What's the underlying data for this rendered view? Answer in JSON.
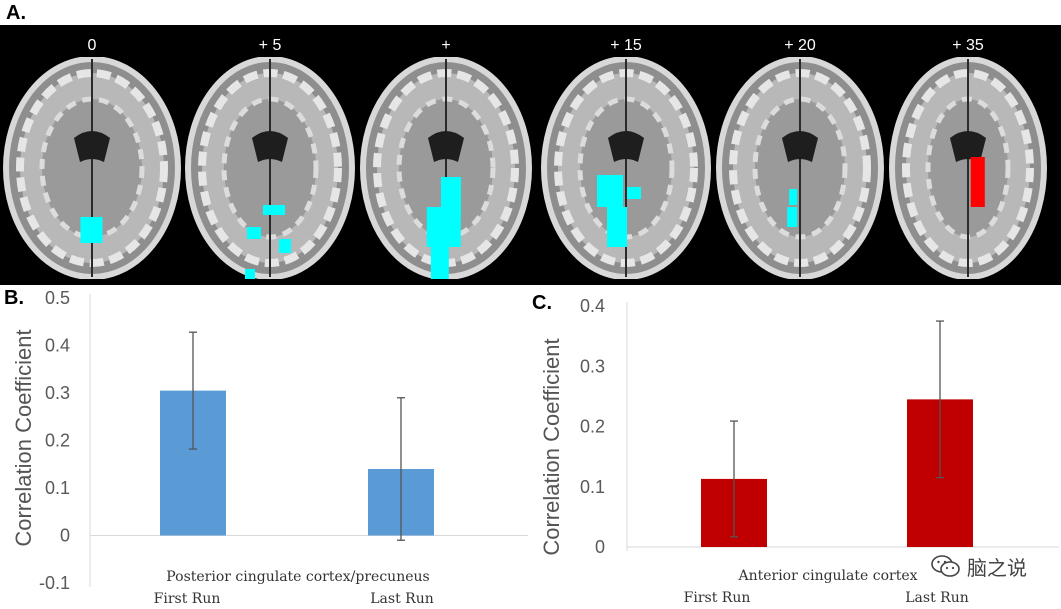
{
  "panel_a": {
    "letter": "A.",
    "slices": [
      {
        "label": "0",
        "color": "#00ffff"
      },
      {
        "label": "+ 5",
        "color": "#00ffff"
      },
      {
        "label": "+",
        "color": "#00ffff"
      },
      {
        "label": "+ 15",
        "color": "#00ffff"
      },
      {
        "label": "+ 20",
        "color": "#00ffff"
      },
      {
        "label": "+ 35",
        "color": "#ff0000"
      }
    ]
  },
  "chart_data": [
    {
      "panel": "B.",
      "type": "bar",
      "ylabel": "Correlation Coefficient",
      "xtitle": "Posterior cingulate cortex/precuneus",
      "categories": [
        "First Run",
        "Last Run"
      ],
      "values": [
        0.305,
        0.14
      ],
      "errors": [
        0.123,
        0.15
      ],
      "yticks": [
        "0.5",
        "0.4",
        "0.3",
        "0.2",
        "0.1",
        "0",
        "-0.1"
      ],
      "ylim": [
        -0.1,
        0.5
      ],
      "color": "#5b9bd5"
    },
    {
      "panel": "C.",
      "type": "bar",
      "ylabel": "Correlation Coefficient",
      "xtitle": "Anterior cingulate cortex",
      "categories": [
        "First Run",
        "Last Run"
      ],
      "values": [
        0.113,
        0.245
      ],
      "errors": [
        0.096,
        0.13
      ],
      "yticks": [
        "0.4",
        "0.3",
        "0.2",
        "0.1",
        "0"
      ],
      "ylim": [
        0,
        0.4
      ],
      "color": "#c00000"
    }
  ],
  "watermark": {
    "text": "脑之说",
    "icon": "wechat-icon"
  }
}
